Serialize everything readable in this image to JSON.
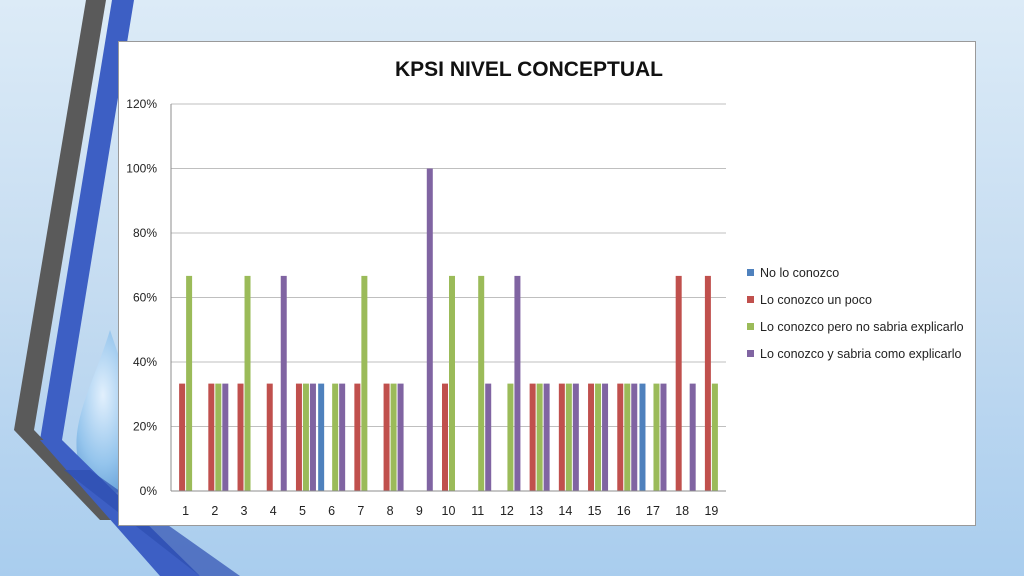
{
  "colors": {
    "no_lo_conozco": "#4f81bd",
    "lo_conozco_un_poco": "#c0504d",
    "pero_no_sabria": "#9bbb59",
    "sabria_explicarlo": "#8064a2",
    "slide_dark_stripe": "#5a5a5a",
    "slide_blue_stripe": "#3d5fc4"
  },
  "chart_data": {
    "type": "bar",
    "title": "KPSI  NIVEL CONCEPTUAL",
    "categories": [
      "1",
      "2",
      "3",
      "4",
      "5",
      "6",
      "7",
      "8",
      "9",
      "10",
      "11",
      "12",
      "13",
      "14",
      "15",
      "16",
      "17",
      "18",
      "19"
    ],
    "y_ticks": [
      "0%",
      "20%",
      "40%",
      "60%",
      "80%",
      "100%",
      "120%"
    ],
    "ylim": [
      0,
      1.2
    ],
    "grid": true,
    "legend_position": "right",
    "series": [
      {
        "name": "No lo conozco",
        "color_key": "no_lo_conozco",
        "values": [
          0,
          0,
          0,
          0,
          0,
          0.333,
          0,
          0,
          0,
          0,
          0,
          0,
          0,
          0,
          0,
          0,
          0.333,
          0,
          0
        ]
      },
      {
        "name": "Lo conozco un poco",
        "color_key": "lo_conozco_un_poco",
        "values": [
          0.333,
          0.333,
          0.333,
          0.333,
          0.333,
          0,
          0.333,
          0.333,
          0,
          0.333,
          0,
          0,
          0.333,
          0.333,
          0.333,
          0.333,
          0,
          0.667,
          0.667
        ]
      },
      {
        "name": "Lo conozco pero no sabria explicarlo",
        "color_key": "pero_no_sabria",
        "values": [
          0.667,
          0.333,
          0.667,
          0,
          0.333,
          0.333,
          0.667,
          0.333,
          0,
          0.667,
          0.667,
          0.333,
          0.333,
          0.333,
          0.333,
          0.333,
          0.333,
          0,
          0.333
        ]
      },
      {
        "name": "Lo conozco y sabria como explicarlo",
        "color_key": "sabria_explicarlo",
        "values": [
          0,
          0.333,
          0,
          0.667,
          0.333,
          0.333,
          0,
          0.333,
          1.0,
          0,
          0.333,
          0.667,
          0.333,
          0.333,
          0.333,
          0.333,
          0.333,
          0.333,
          0
        ]
      }
    ]
  }
}
